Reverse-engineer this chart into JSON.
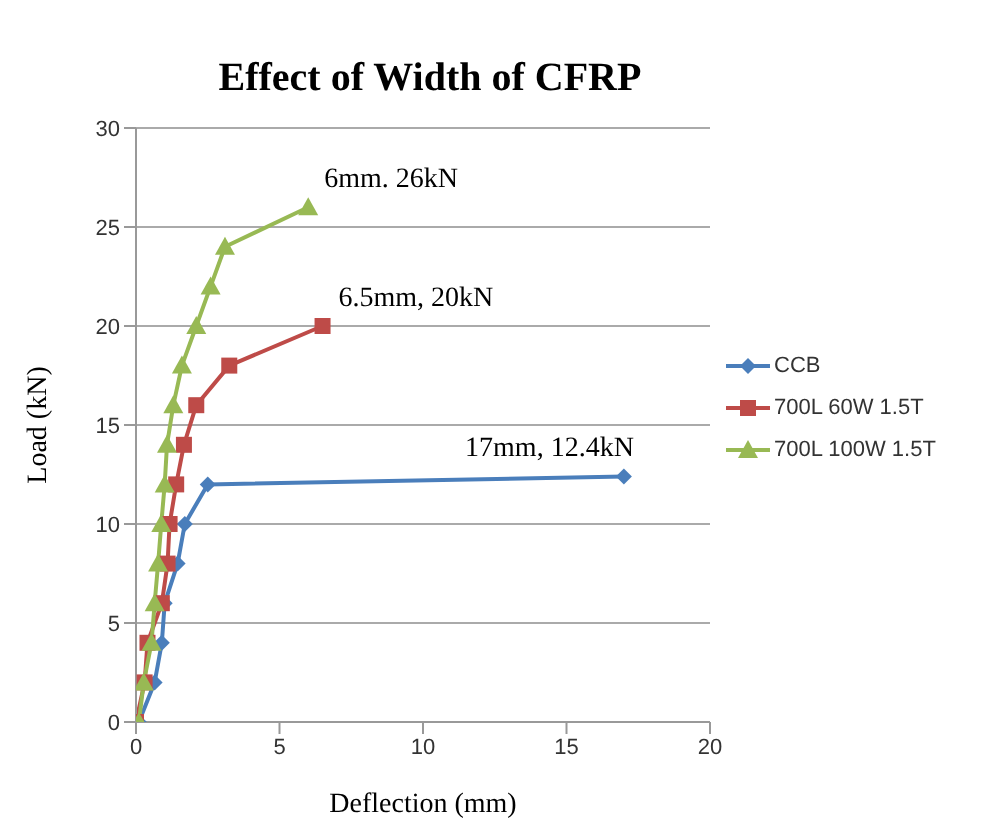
{
  "chart_data": {
    "type": "line",
    "title": "Effect of Width of CFRP",
    "xlabel": "Deflection (mm)",
    "ylabel": "Load (kN)",
    "xlim": [
      0,
      20
    ],
    "xticks": [
      0,
      5,
      10,
      15,
      20
    ],
    "ylim": [
      0,
      30
    ],
    "yticks": [
      0,
      5,
      10,
      15,
      20,
      25,
      30
    ],
    "grid": "y",
    "legend": "right",
    "series": [
      {
        "name": "CCB",
        "color": "#4a7ebb",
        "marker": "diamond",
        "x": [
          0.1,
          0.65,
          0.9,
          1.0,
          1.45,
          1.7,
          2.5,
          17
        ],
        "values": [
          0,
          2,
          4,
          6,
          8,
          10,
          12,
          12.4
        ]
      },
      {
        "name": "700L 60W 1.5T",
        "color": "#be4b48",
        "marker": "square",
        "x": [
          0,
          0.3,
          0.4,
          0.9,
          1.1,
          1.17,
          1.4,
          1.67,
          2.1,
          3.25,
          6.5
        ],
        "values": [
          0,
          2,
          4,
          6,
          8,
          10,
          12,
          14,
          16,
          18,
          20
        ]
      },
      {
        "name": "700L 100W 1.5T",
        "color": "#98b954",
        "marker": "triangle",
        "x": [
          0.1,
          0.27,
          0.54,
          0.65,
          0.77,
          0.88,
          1.0,
          1.08,
          1.3,
          1.6,
          2.1,
          2.6,
          3.1,
          6
        ],
        "values": [
          0,
          2,
          4,
          6,
          8,
          10,
          12,
          14,
          16,
          18,
          20,
          22,
          24,
          26
        ]
      }
    ],
    "annotations": [
      {
        "text": "6mm. 26kN",
        "x": 6,
        "y": 26
      },
      {
        "text": "6.5mm, 20kN",
        "x": 6.5,
        "y": 20
      },
      {
        "text": "17mm, 12.4kN",
        "x": 17,
        "y": 12.4
      }
    ]
  }
}
